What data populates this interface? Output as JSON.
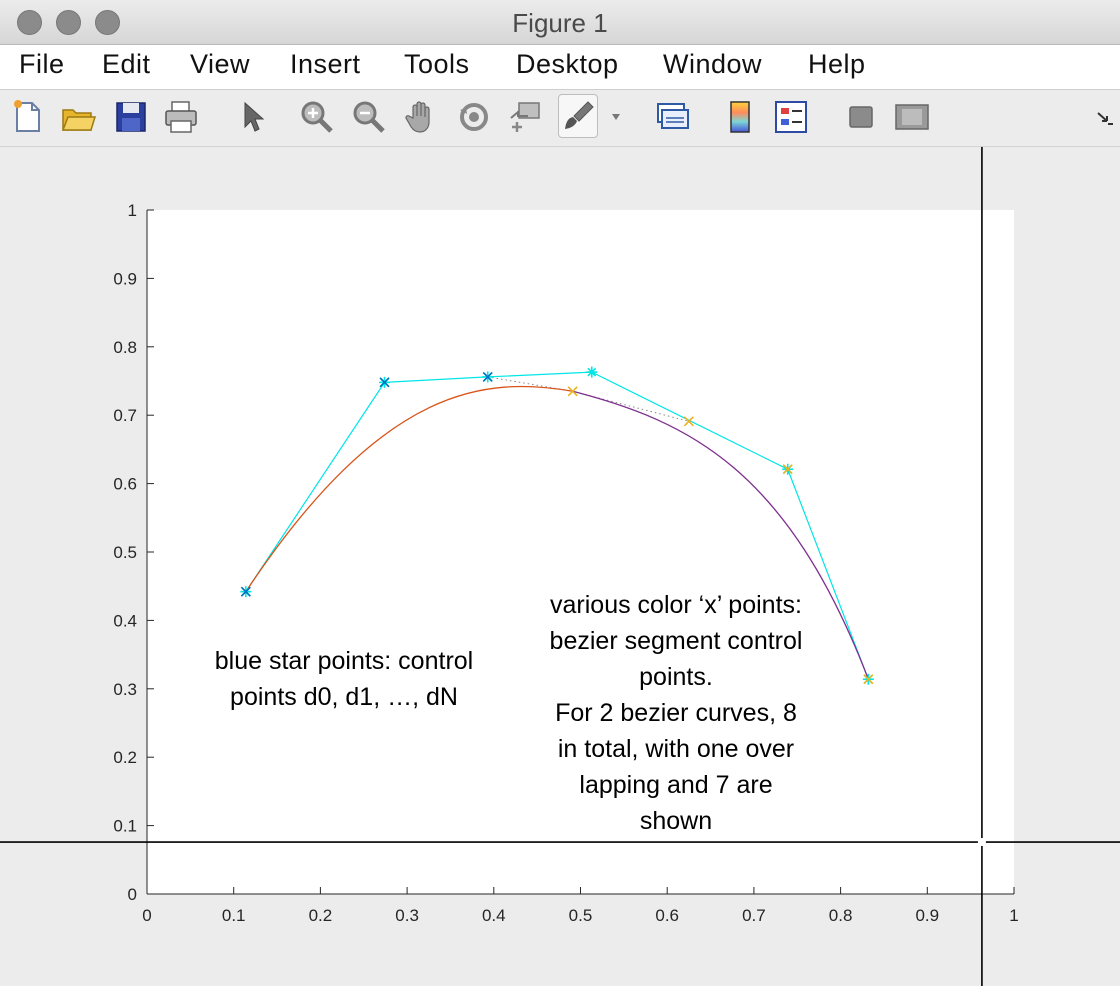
{
  "window": {
    "title": "Figure 1"
  },
  "menu": {
    "items": [
      "File",
      "Edit",
      "View",
      "Insert",
      "Tools",
      "Desktop",
      "Window",
      "Help"
    ]
  },
  "toolbar": {
    "icons": [
      "new-figure-icon",
      "open-folder-icon",
      "save-icon",
      "print-icon",
      "pointer-arrow-icon",
      "zoom-in-icon",
      "zoom-out-icon",
      "pan-hand-icon",
      "rotate-3d-icon",
      "data-cursor-icon",
      "brush-icon",
      "brush-dropdown-icon",
      "link-plot-icon",
      "colorbar-icon",
      "legend-icon",
      "hide-plot-tools-icon",
      "show-plot-tools-icon",
      "dock-arrow-icon"
    ]
  },
  "annotations": {
    "left": [
      "blue star points: control",
      "points d0, d1, …, dN"
    ],
    "right": [
      "various color ‘x’ points:",
      "bezier segment control",
      "points.",
      "For 2 bezier curves, 8",
      "in total, with one over",
      "lapping and 7 are",
      "shown"
    ]
  },
  "chart_data": {
    "type": "line",
    "xlim": [
      0,
      1
    ],
    "ylim": [
      0,
      1
    ],
    "xticks": [
      0,
      0.1,
      0.2,
      0.3,
      0.4,
      0.5,
      0.6,
      0.7,
      0.8,
      0.9,
      1
    ],
    "yticks": [
      0,
      0.1,
      0.2,
      0.3,
      0.4,
      0.5,
      0.6,
      0.7,
      0.8,
      0.9,
      1
    ],
    "xtick_labels": [
      "0",
      "0.1",
      "0.2",
      "0.3",
      "0.4",
      "0.5",
      "0.6",
      "0.7",
      "0.8",
      "0.9",
      "1"
    ],
    "ytick_labels": [
      "0",
      "0.1",
      "0.2",
      "0.3",
      "0.4",
      "0.5",
      "0.6",
      "0.7",
      "0.8",
      "0.9",
      "1"
    ],
    "grid": false,
    "control_polygon": {
      "color": "#00e5e5",
      "x": [
        0.114,
        0.274,
        0.393,
        0.513,
        0.739,
        0.832
      ],
      "y": [
        0.442,
        0.748,
        0.756,
        0.763,
        0.621,
        0.314
      ]
    },
    "bezier_control_points": [
      {
        "x": 0.114,
        "y": 0.442,
        "color": "#0072bd"
      },
      {
        "x": 0.274,
        "y": 0.748,
        "color": "#0072bd"
      },
      {
        "x": 0.393,
        "y": 0.756,
        "color": "#0072bd"
      },
      {
        "x": 0.491,
        "y": 0.735,
        "color": "#edb120"
      },
      {
        "x": 0.625,
        "y": 0.691,
        "color": "#edb120"
      },
      {
        "x": 0.739,
        "y": 0.621,
        "color": "#edb120"
      },
      {
        "x": 0.832,
        "y": 0.314,
        "color": "#edb120"
      }
    ],
    "dotted_connector": {
      "color": "#888888",
      "x": [
        0.393,
        0.491,
        0.625
      ],
      "y": [
        0.756,
        0.735,
        0.691
      ]
    },
    "series": [
      {
        "color": "#d95319",
        "p0": [
          0.114,
          0.442
        ],
        "p1": [
          0.274,
          0.748
        ],
        "p2": [
          0.393,
          0.756
        ],
        "p3": [
          0.491,
          0.735
        ]
      },
      {
        "color": "#7e2f8e",
        "p0": [
          0.491,
          0.735
        ],
        "p1": [
          0.625,
          0.691
        ],
        "p2": [
          0.739,
          0.621
        ],
        "p3": [
          0.832,
          0.314
        ]
      }
    ],
    "crosshair": {
      "x": 0.963,
      "y": 0.076
    }
  }
}
